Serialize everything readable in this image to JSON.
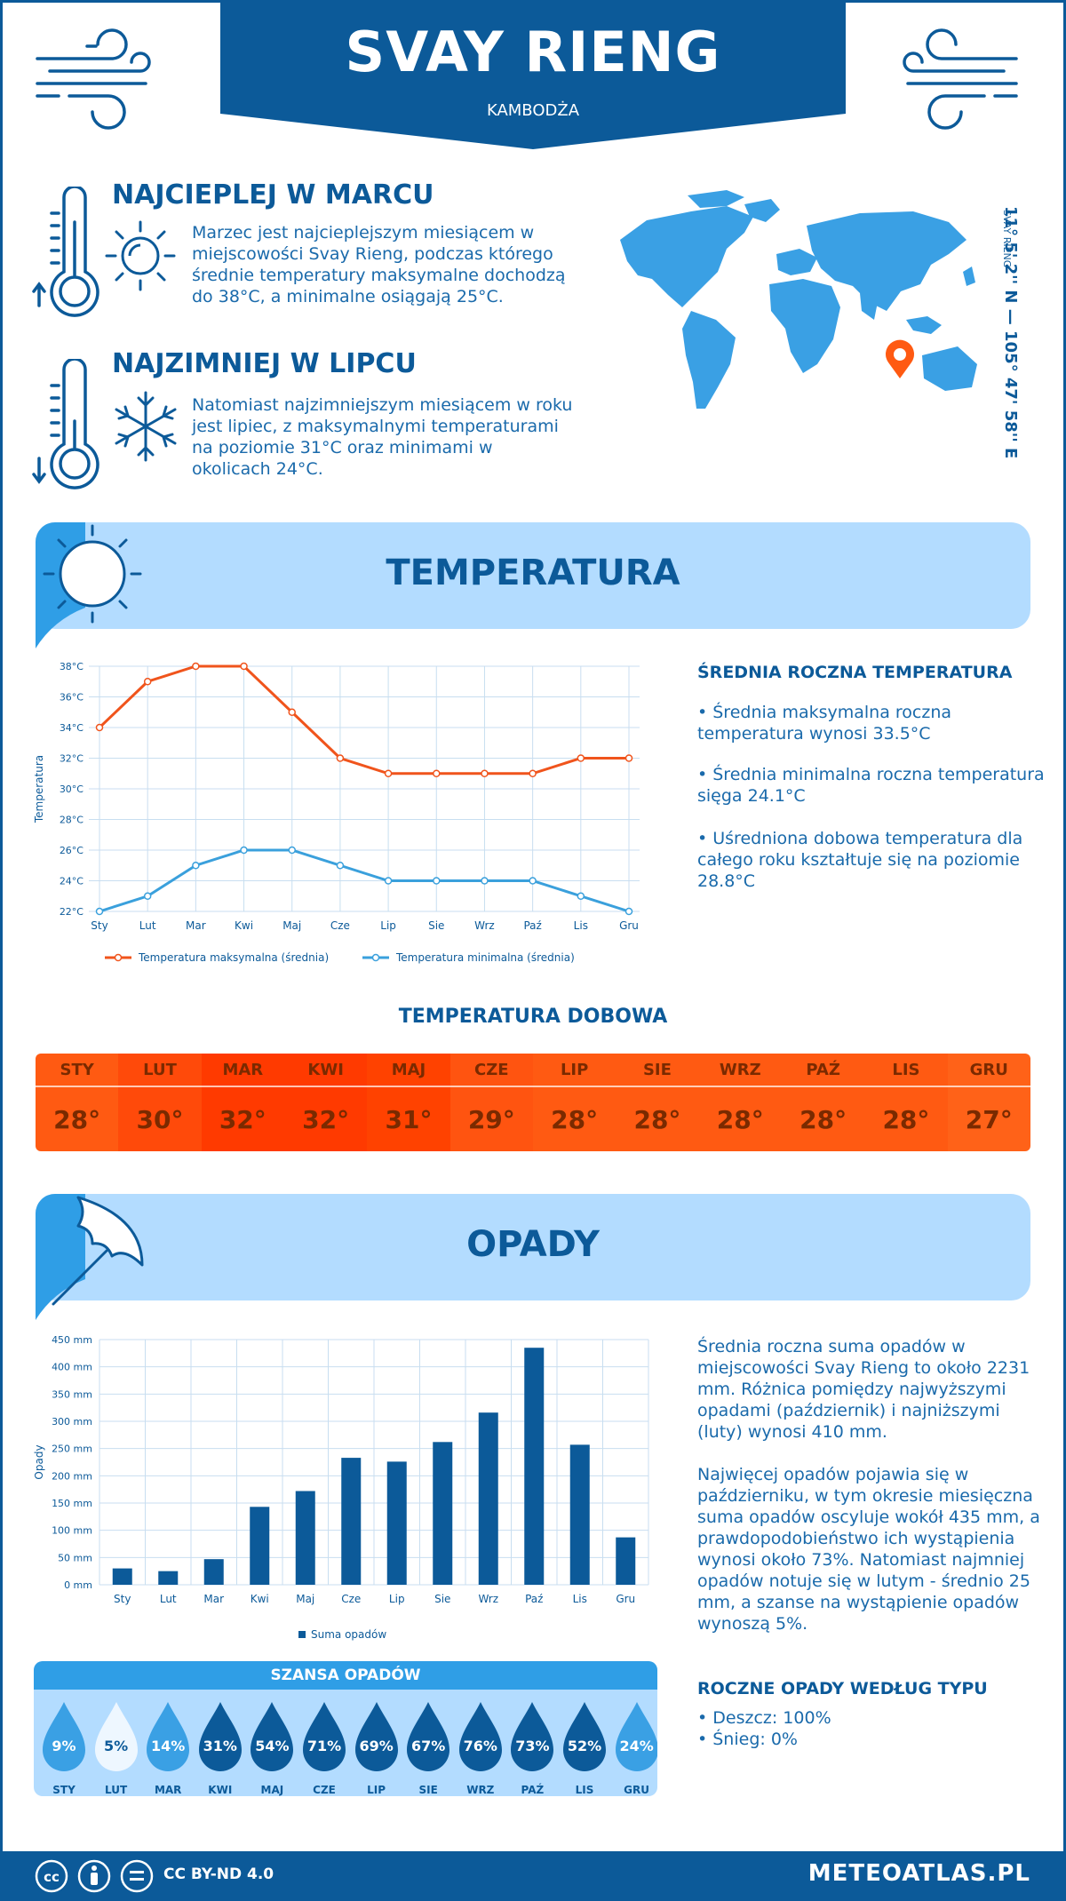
{
  "header": {
    "city": "SVAY RIENG",
    "country": "KAMBODŻA"
  },
  "hottest": {
    "title": "NAJCIEPLEJ W MARCU",
    "text_lines": [
      "Marzec jest najcieplejszym miesiącem w",
      "miejscowości Svay Rieng, podczas którego",
      "średnie temperatury maksymalne dochodzą",
      "do 38°C, a minimalne osiągają 25°C."
    ]
  },
  "coldest": {
    "title": "NAJZIMNIEJ W LIPCU",
    "text_lines": [
      "Natomiast najzimniejszym miesiącem w roku",
      "jest lipiec, z maksymalnymi temperaturami",
      "na poziomie 31°C oraz minimami w",
      "okolicach 24°C."
    ]
  },
  "location": {
    "coords": "11° 5' 2'' N — 105° 47' 58'' E",
    "name_small": "SVAY RIENG"
  },
  "temperature_section": {
    "title": "TEMPERATURA",
    "side_heading": "ŚREDNIA ROCZNA TEMPERATURA",
    "bullets": [
      [
        "• Średnia maksymalna roczna",
        "temperatura wynosi 33.5°C"
      ],
      [
        "• Średnia minimalna roczna temperatura",
        "sięga 24.1°C"
      ],
      [
        "• Uśredniona dobowa temperatura dla",
        "całego roku kształtuje się na poziomie",
        "28.8°C"
      ]
    ]
  },
  "chart_data": [
    {
      "type": "line",
      "categories": [
        "Sty",
        "Lut",
        "Mar",
        "Kwi",
        "Maj",
        "Cze",
        "Lip",
        "Sie",
        "Wrz",
        "Paź",
        "Lis",
        "Gru"
      ],
      "series": [
        {
          "name": "Temperatura maksymalna (średnia)",
          "color": "#f0541c",
          "values": [
            34,
            37,
            38,
            38,
            35,
            32,
            31,
            31,
            31,
            31,
            32,
            32
          ]
        },
        {
          "name": "Temperatura minimalna (średnia)",
          "color": "#3aa0dc",
          "values": [
            22,
            23,
            25,
            26,
            26,
            25,
            24,
            24,
            24,
            24,
            23,
            22
          ]
        }
      ],
      "ylabel": "Temperatura",
      "yticks": [
        "22°C",
        "24°C",
        "26°C",
        "28°C",
        "30°C",
        "32°C",
        "34°C",
        "36°C",
        "38°C"
      ],
      "ylim": [
        22,
        38
      ],
      "grid": true,
      "legend": "bottom"
    },
    {
      "type": "bar",
      "categories": [
        "Sty",
        "Lut",
        "Mar",
        "Kwi",
        "Maj",
        "Cze",
        "Lip",
        "Sie",
        "Wrz",
        "Paź",
        "Lis",
        "Gru"
      ],
      "series": [
        {
          "name": "Suma opadów",
          "color": "#0c5a99",
          "values": [
            30,
            25,
            47,
            143,
            172,
            233,
            226,
            262,
            316,
            435,
            257,
            87
          ]
        }
      ],
      "ylabel": "Opady",
      "yticks": [
        "0 mm",
        "50 mm",
        "100 mm",
        "150 mm",
        "200 mm",
        "250 mm",
        "300 mm",
        "350 mm",
        "400 mm",
        "450 mm"
      ],
      "ylim": [
        0,
        450
      ],
      "grid": true,
      "legend": "bottom"
    }
  ],
  "daily": {
    "title": "TEMPERATURA DOBOWA",
    "months": [
      "STY",
      "LUT",
      "MAR",
      "KWI",
      "MAJ",
      "CZE",
      "LIP",
      "SIE",
      "WRZ",
      "PAŹ",
      "LIS",
      "GRU"
    ],
    "values": [
      "28°",
      "30°",
      "32°",
      "32°",
      "31°",
      "29°",
      "28°",
      "28°",
      "28°",
      "28°",
      "28°",
      "27°"
    ],
    "colors": [
      "#ff5a12",
      "#ff4a0a",
      "#ff3a00",
      "#ff3a00",
      "#ff4200",
      "#ff5410",
      "#ff5a12",
      "#ff5a12",
      "#ff5a12",
      "#ff5a12",
      "#ff5a12",
      "#ff6218"
    ]
  },
  "precip_section": {
    "title": "OPADY",
    "para1": [
      "Średnia roczna suma opadów w",
      "miejscowości Svay Rieng to około 2231",
      "mm. Różnica pomiędzy najwyższymi",
      "opadami (październik) i najniższymi",
      "(luty) wynosi 410 mm."
    ],
    "para2": [
      "Najwięcej opadów pojawia się w",
      "październiku, w tym okresie miesięczna",
      "suma opadów oscyluje wokół 435 mm, a",
      "prawdopodobieństwo ich wystąpienia",
      "wynosi około 73%. Natomiast najmniej",
      "opadów notuje się w lutym - średnio 25",
      "mm, a szanse na wystąpienie opadów",
      "wynoszą 5%."
    ],
    "types_heading": "ROCZNE OPADY WEDŁUG TYPU",
    "types": [
      "• Deszcz: 100%",
      "• Śnieg: 0%"
    ]
  },
  "chance": {
    "title": "SZANSA OPADÓW",
    "months": [
      "STY",
      "LUT",
      "MAR",
      "KWI",
      "MAJ",
      "CZE",
      "LIP",
      "SIE",
      "WRZ",
      "PAŹ",
      "LIS",
      "GRU"
    ],
    "values": [
      "9%",
      "5%",
      "14%",
      "31%",
      "54%",
      "71%",
      "69%",
      "67%",
      "76%",
      "73%",
      "52%",
      "24%"
    ],
    "colors": [
      "#3aa0e4",
      "#eef7ff",
      "#3aa0e4",
      "#0c5a99",
      "#0c5a99",
      "#0c5a99",
      "#0c5a99",
      "#0c5a99",
      "#0c5a99",
      "#0c5a99",
      "#0c5a99",
      "#3aa0e4"
    ]
  },
  "footer": {
    "license": "CC BY-ND 4.0",
    "site": "METEOATLAS.PL"
  }
}
